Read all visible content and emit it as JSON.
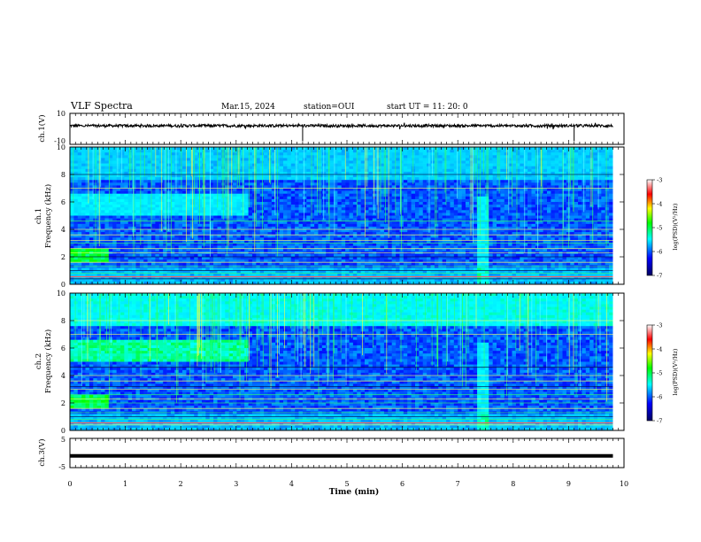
{
  "header": {
    "title": "VLF Spectra",
    "date": "Mar.15, 2024",
    "station": "station=OUI",
    "start": "start UT = 11: 20: 0"
  },
  "colors": {
    "colormap": [
      "#000080",
      "#0000ff",
      "#00ffff",
      "#00ff00",
      "#ffff00",
      "#ff0000",
      "#ffffff"
    ]
  },
  "chart_data": [
    {
      "type": "line",
      "panel": "ch1-waveform",
      "ylabel": "ch.1(V)",
      "ylim": [
        -10,
        10
      ],
      "y_ticks": [
        "10",
        "-10"
      ],
      "x": [
        0,
        1,
        2,
        3,
        4,
        5,
        6,
        7,
        8,
        9,
        9.8
      ],
      "y": [
        2,
        2,
        2,
        2,
        2,
        2,
        2,
        2,
        2,
        2,
        2
      ]
    },
    {
      "type": "heatmap",
      "panel": "ch1-spectrogram",
      "ylabel": "ch.1 Frequency (kHz)",
      "ylim": [
        0,
        10
      ],
      "y_ticks": [
        "0",
        "2",
        "4",
        "6",
        "8",
        "10"
      ],
      "colorbar_label": "log(PSD)(V²/Hz)",
      "colorbar_ticks": [
        "-3",
        "-4",
        "-5",
        "-6",
        "-7"
      ],
      "colorbar_range": [
        -7,
        -3
      ]
    },
    {
      "type": "heatmap",
      "panel": "ch2-spectrogram",
      "ylabel": "ch.2 Frequency (kHz)",
      "ylim": [
        0,
        10
      ],
      "y_ticks": [
        "0",
        "2",
        "4",
        "6",
        "8",
        "10"
      ],
      "colorbar_label": "log(PSD)(V²/Hz)",
      "colorbar_ticks": [
        "-3",
        "-4",
        "-5",
        "-6",
        "-7"
      ],
      "colorbar_range": [
        -7,
        -3
      ]
    },
    {
      "type": "line",
      "panel": "ch3-waveform",
      "ylabel": "ch.3(V)",
      "ylim": [
        -5,
        5
      ],
      "y_ticks": [
        "5",
        "-5"
      ],
      "x": [
        0,
        9.8
      ],
      "y": [
        -1,
        -1
      ]
    }
  ],
  "xaxis": {
    "label": "Time (min)",
    "xlim": [
      0,
      10
    ],
    "ticks": [
      "0",
      "1",
      "2",
      "3",
      "4",
      "5",
      "6",
      "7",
      "8",
      "9",
      "10"
    ]
  }
}
